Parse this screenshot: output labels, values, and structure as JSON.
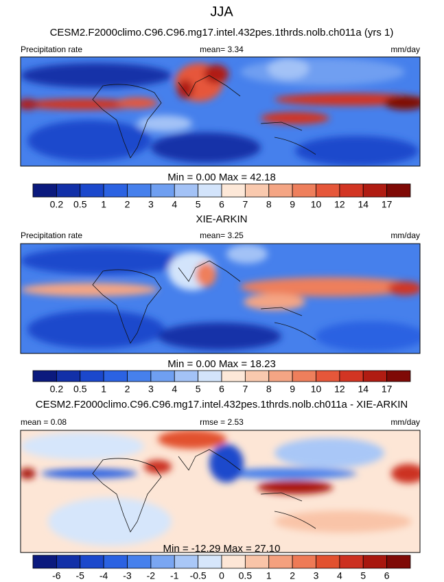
{
  "title": "JJA",
  "panels": [
    {
      "title": "CESM2.F2000climo.C96.C96.mg17.intel.432pes.1thrds.nolb.ch011a (yrs 1)",
      "left_label": "Precipitation rate",
      "center_label": "mean=   3.34",
      "right_label": "mm/day",
      "stats": "Min =   0.00 Max =  42.18",
      "colorbar": {
        "colors": [
          "#0b1a7e",
          "#1230a8",
          "#1b48cc",
          "#2b62e2",
          "#4680ec",
          "#6f9ff1",
          "#a3c2f6",
          "#d3e4fb",
          "#fde8d8",
          "#f9c9ae",
          "#f4a584",
          "#ee7f5c",
          "#e6573a",
          "#d23523",
          "#b01c12",
          "#7f0a06"
        ],
        "labels": [
          0.2,
          0.5,
          1,
          2,
          3,
          4,
          5,
          6,
          7,
          8,
          9,
          10,
          12,
          14,
          17
        ]
      }
    },
    {
      "title": "XIE-ARKIN",
      "left_label": "Precipitation rate",
      "center_label": "mean=   3.25",
      "right_label": "mm/day",
      "stats": "Min =   0.00 Max =  18.23",
      "colorbar": {
        "colors": [
          "#0b1a7e",
          "#1230a8",
          "#1b48cc",
          "#2b62e2",
          "#4680ec",
          "#6f9ff1",
          "#a3c2f6",
          "#d3e4fb",
          "#fde8d8",
          "#f9c9ae",
          "#f4a584",
          "#ee7f5c",
          "#e6573a",
          "#d23523",
          "#b01c12",
          "#7f0a06"
        ],
        "labels": [
          0.2,
          0.5,
          1,
          2,
          3,
          4,
          5,
          6,
          7,
          8,
          9,
          10,
          12,
          14,
          17
        ]
      }
    },
    {
      "title": "CESM2.F2000climo.C96.C96.mg17.intel.432pes.1thrds.nolb.ch011a - XIE-ARKIN",
      "left_label": "mean =   0.08",
      "center_label": "rmse =   2.53",
      "right_label": "mm/day",
      "stats": "Min = -12.29 Max =  27.10",
      "colorbar": {
        "colors": [
          "#0b1a7e",
          "#1230a8",
          "#1b48cc",
          "#2b62e2",
          "#4680ec",
          "#7aa6f2",
          "#a9c7f7",
          "#d6e6fb",
          "#fde6d6",
          "#f9c4a8",
          "#f4a07e",
          "#ee7a56",
          "#e2512f",
          "#cc3020",
          "#a8170e",
          "#7f0a06"
        ],
        "labels": [
          -6,
          -5,
          -4,
          -3,
          -2,
          -1,
          -0.5,
          0,
          0.5,
          1,
          2,
          3,
          4,
          5,
          6
        ]
      }
    }
  ]
}
